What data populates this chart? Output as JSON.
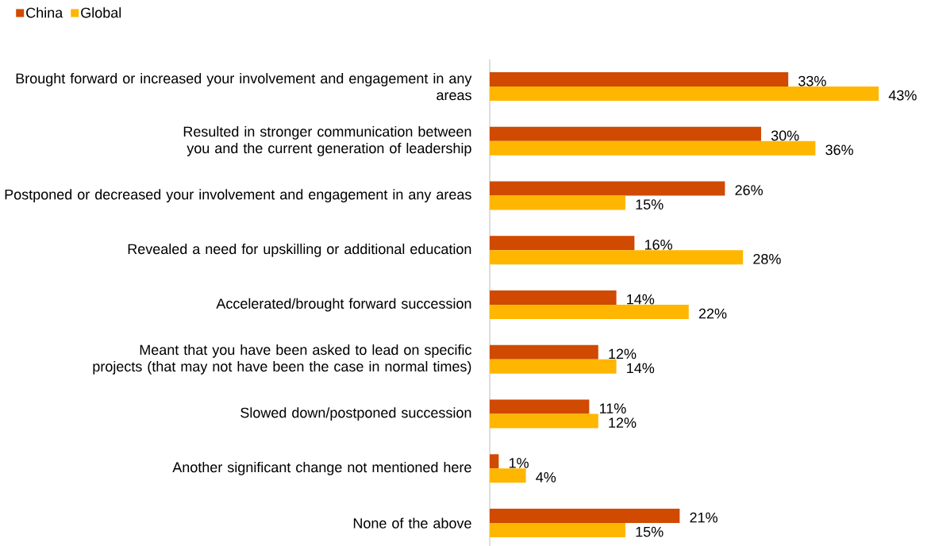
{
  "chart_data": {
    "type": "bar",
    "orientation": "horizontal",
    "legend": "top left",
    "categories": [
      "Brought forward or increased your involvement and engagement in any areas",
      "Resulted in stronger communication between you and the current generation of leadership",
      "Postponed or decreased your involvement and engagement in any areas",
      "Revealed a need for upskilling or additional education",
      "Accelerated/brought forward succession",
      "Meant that you have been asked to lead on specific projects (that may not have been the case in normal times)",
      "Slowed down/postponed succession",
      "Another significant change not mentioned here",
      "None of the above"
    ],
    "series": [
      {
        "name": "China",
        "color": "#d04a02",
        "values": [
          33,
          30,
          26,
          16,
          14,
          12,
          11,
          1,
          21
        ],
        "value_labels": [
          "33%",
          "30%",
          "26%",
          "16%",
          "14%",
          "12%",
          "11%",
          "1%",
          "21%"
        ]
      },
      {
        "name": "Global",
        "color": "#ffb600",
        "values": [
          43,
          36,
          15,
          28,
          22,
          14,
          12,
          4,
          15
        ],
        "value_labels": [
          "43%",
          "36%",
          "15%",
          "28%",
          "22%",
          "14%",
          "12%",
          "4%",
          "15%"
        ]
      }
    ]
  }
}
